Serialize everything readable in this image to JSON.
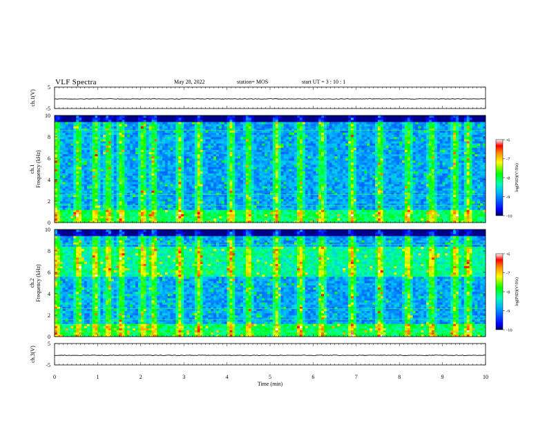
{
  "header": {
    "title": "VLF Spectra",
    "date": "May 28, 2022",
    "station": "station= MOS",
    "start_time": "start  UT =   3 : 10 : 1"
  },
  "chart_data": {
    "type": "heatmap",
    "xlabel": "Time  (min)",
    "xlim": [
      0,
      10
    ],
    "xticks": [
      "0",
      "1",
      "2",
      "3",
      "4",
      "5",
      "6",
      "7",
      "8",
      "9",
      "10"
    ],
    "panels": [
      {
        "ylabel": "ch.1(V)",
        "type": "line",
        "ylim": [
          -5,
          5
        ],
        "yticks": [
          "5",
          "-5"
        ],
        "level": -0.5
      },
      {
        "ylabel": "ch.1 Frequency  (kHz)",
        "type": "heatmap",
        "ylim": [
          0,
          10
        ],
        "yticks": [
          "0",
          "2",
          "4",
          "6",
          "8",
          "10"
        ],
        "colorbar": {
          "label": "log(PSD)(V²/Hz)",
          "range": [
            -10,
            -6
          ],
          "ticks": [
            "-6",
            "-7",
            "-8",
            "-9",
            "-10"
          ]
        },
        "broadband_bursts_min": [
          0.05,
          0.55,
          0.95,
          1.25,
          1.55,
          2.05,
          2.3,
          2.9,
          3.35,
          4.1,
          4.5,
          5.15,
          5.7,
          6.2,
          6.9,
          7.55,
          8.2,
          8.75,
          9.3,
          9.6
        ]
      },
      {
        "ylabel": "ch.2 Frequency  (kHz)",
        "type": "heatmap",
        "ylim": [
          0,
          10
        ],
        "yticks": [
          "0",
          "2",
          "4",
          "6",
          "8",
          "10"
        ],
        "colorbar": {
          "label": "log(PSD)(V²/Hz)",
          "range": [
            -10,
            -6
          ],
          "ticks": [
            "-6",
            "-7",
            "-8",
            "-9",
            "-10"
          ]
        },
        "broadband_bursts_min": [
          0.05,
          0.55,
          0.95,
          1.25,
          1.55,
          2.05,
          2.3,
          2.9,
          3.35,
          4.1,
          4.5,
          5.15,
          5.7,
          6.2,
          6.9,
          7.55,
          8.2,
          8.75,
          9.3,
          9.6
        ]
      },
      {
        "ylabel": "ch.3(V)",
        "type": "line",
        "ylim": [
          -5,
          5
        ],
        "yticks": [
          "5",
          "-5"
        ],
        "level": -0.5
      }
    ]
  }
}
